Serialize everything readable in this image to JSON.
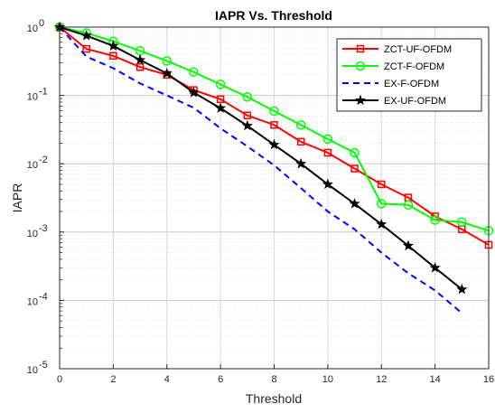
{
  "chart_data": {
    "type": "line",
    "title": "IAPR Vs. Threshold",
    "xlabel": "Threshold",
    "ylabel": "IAPR",
    "xlim": [
      0,
      16
    ],
    "ylim": [
      1e-05,
      1
    ],
    "yscale": "log",
    "grid": true,
    "minor_grid": true,
    "legend_position": "top-right",
    "x_ticks": [
      "0",
      "2",
      "4",
      "6",
      "8",
      "10",
      "12",
      "14",
      "16"
    ],
    "y_ticks": [
      {
        "base": "10",
        "exp": "0",
        "value": 1
      },
      {
        "base": "10",
        "exp": "-1",
        "value": 0.1
      },
      {
        "base": "10",
        "exp": "-2",
        "value": 0.01
      },
      {
        "base": "10",
        "exp": "-3",
        "value": 0.001
      },
      {
        "base": "10",
        "exp": "-4",
        "value": 0.0001
      },
      {
        "base": "10",
        "exp": "-5",
        "value": 1e-05
      }
    ],
    "series": [
      {
        "name": "ZCT-UF-OFDM",
        "color": "#ff0000",
        "marker": "square",
        "dash": "solid",
        "x": [
          0,
          1,
          2,
          3,
          4,
          5,
          6,
          7,
          8,
          9,
          10,
          11,
          12,
          13,
          14,
          15,
          16
        ],
        "y": [
          1,
          0.48,
          0.38,
          0.26,
          0.2,
          0.12,
          0.088,
          0.051,
          0.037,
          0.021,
          0.0145,
          0.0085,
          0.005,
          0.0032,
          0.0017,
          0.0011,
          0.00065
        ]
      },
      {
        "name": "ZCT-F-OFDM",
        "color": "#00ff00",
        "marker": "circle",
        "dash": "solid",
        "x": [
          0,
          1,
          2,
          3,
          4,
          5,
          6,
          7,
          8,
          9,
          10,
          11,
          12,
          13,
          14,
          15,
          16
        ],
        "y": [
          1,
          0.82,
          0.62,
          0.45,
          0.32,
          0.22,
          0.145,
          0.095,
          0.059,
          0.037,
          0.023,
          0.0145,
          0.0026,
          0.0025,
          0.0015,
          0.0014,
          0.00105
        ]
      },
      {
        "name": "EX-F-OFDM",
        "color": "#0000ff",
        "marker": "none",
        "dash": "dashed",
        "x": [
          0,
          1,
          2,
          3,
          4,
          5,
          6,
          7,
          8,
          9,
          10,
          11,
          12,
          13,
          14,
          15
        ],
        "y": [
          1,
          0.37,
          0.25,
          0.15,
          0.1,
          0.066,
          0.033,
          0.018,
          0.0095,
          0.0044,
          0.002,
          0.0011,
          0.0005,
          0.00025,
          0.00014,
          6.5e-05
        ]
      },
      {
        "name": "EX-UF-OFDM",
        "color": "#000000",
        "marker": "star",
        "dash": "solid",
        "x": [
          0,
          1,
          2,
          3,
          4,
          5,
          6,
          7,
          8,
          9,
          10,
          11,
          12,
          13,
          14,
          15
        ],
        "y": [
          1,
          0.75,
          0.53,
          0.33,
          0.21,
          0.11,
          0.065,
          0.036,
          0.019,
          0.01,
          0.005,
          0.0026,
          0.0013,
          0.00063,
          0.0003,
          0.000145
        ]
      }
    ]
  }
}
